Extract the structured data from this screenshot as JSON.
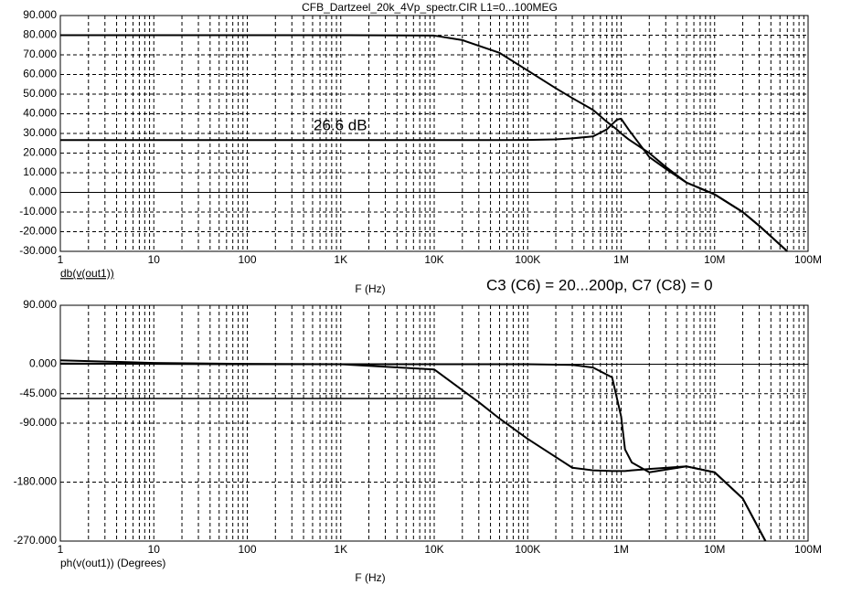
{
  "chart_data": [
    {
      "type": "line",
      "title": "CFB_Dartzeel_20k_4Vp_spectr.CIR L1=0...100MEG",
      "y_label": "db(v(out1))",
      "x_label": "F (Hz)",
      "annotations": [
        "26.6 dB",
        "C3 (C6) = 20...200p, C7 (C8) = 0"
      ],
      "log_x": true,
      "grid": true,
      "xlim": [
        1,
        100000000
      ],
      "xticks": [
        1,
        10,
        100,
        {
          "value": 1000,
          "label": "1K"
        },
        {
          "value": 10000,
          "label": "10K"
        },
        {
          "value": 100000,
          "label": "100K"
        },
        {
          "value": 1000000,
          "label": "1M"
        },
        {
          "value": 10000000,
          "label": "10M"
        },
        {
          "value": 100000000,
          "label": "100M"
        }
      ],
      "ylim": [
        -30,
        90
      ],
      "yticks": [
        {
          "value": 90,
          "label": "90.000"
        },
        {
          "value": 80,
          "label": "80.000"
        },
        {
          "value": 70,
          "label": "70.000"
        },
        {
          "value": 60,
          "label": "60.000"
        },
        {
          "value": 50,
          "label": "50.000"
        },
        {
          "value": 40,
          "label": "40.000"
        },
        {
          "value": 30,
          "label": "30.000"
        },
        {
          "value": 20,
          "label": "20.000"
        },
        {
          "value": 10,
          "label": "10.000"
        },
        {
          "value": 0,
          "label": "0.000"
        },
        {
          "value": -10,
          "label": "-10.000"
        },
        {
          "value": -20,
          "label": "-20.000"
        },
        {
          "value": -30,
          "label": "-30.000"
        }
      ],
      "x": [
        1,
        10,
        100,
        1000,
        10000,
        20000,
        50000,
        100000,
        200000,
        300000,
        500000,
        700000,
        900000,
        1000000,
        1200000,
        2000000,
        3000000,
        5000000,
        10000000,
        20000000,
        30000000,
        60000000
      ],
      "series": [
        {
          "color": "#000000",
          "values": [
            80,
            80,
            80,
            80,
            79.8,
            77.5,
            71,
            62,
            53,
            48,
            42,
            36,
            32,
            30,
            27,
            20,
            13,
            5,
            -1,
            -10,
            -17,
            -30
          ]
        },
        {
          "color": "#000000",
          "values": [
            26.6,
            26.6,
            26.6,
            26.6,
            26.6,
            26.6,
            26.6,
            26.7,
            27,
            27.5,
            28.5,
            32,
            37,
            37.5,
            32,
            18,
            12,
            5,
            -1,
            -10,
            -17,
            -30
          ]
        }
      ]
    },
    {
      "type": "line",
      "y_label": "ph(v(out1)) (Degrees)",
      "x_label": "F (Hz)",
      "log_x": true,
      "grid": true,
      "xlim": [
        1,
        100000000
      ],
      "xticks": [
        1,
        10,
        100,
        {
          "value": 1000,
          "label": "1K"
        },
        {
          "value": 10000,
          "label": "10K"
        },
        {
          "value": 100000,
          "label": "100K"
        },
        {
          "value": 1000000,
          "label": "1M"
        },
        {
          "value": 10000000,
          "label": "10M"
        },
        {
          "value": 100000000,
          "label": "100M"
        }
      ],
      "ylim": [
        -270,
        90
      ],
      "yticks": [
        {
          "value": 90,
          "label": "90.000"
        },
        {
          "value": 0,
          "label": "0.000"
        },
        {
          "value": -45,
          "label": "-45.000"
        },
        {
          "value": -90,
          "label": "-90.000"
        },
        {
          "value": -180,
          "label": "-180.000"
        },
        {
          "value": -270,
          "label": "-270.000"
        }
      ],
      "x": [
        1,
        10,
        100,
        1000,
        10000,
        30000,
        50000,
        100000,
        300000,
        500000,
        800000,
        1000000,
        1100000,
        1300000,
        2000000,
        5000000,
        10000000,
        20000000,
        35000000
      ],
      "series": [
        {
          "color": "#000000",
          "values": [
            6,
            2,
            0.5,
            0,
            0,
            0,
            0,
            0,
            -1,
            -5,
            -20,
            -80,
            -130,
            -150,
            -165,
            -156,
            -165,
            -205,
            -270
          ]
        },
        {
          "color": "#000000",
          "values": [
            1,
            0.5,
            0,
            0,
            -8,
            -58,
            -83,
            -114,
            -158,
            -162,
            -163,
            -163,
            -163,
            -162,
            -160,
            -156,
            -165,
            -205,
            -270
          ]
        }
      ]
    }
  ]
}
